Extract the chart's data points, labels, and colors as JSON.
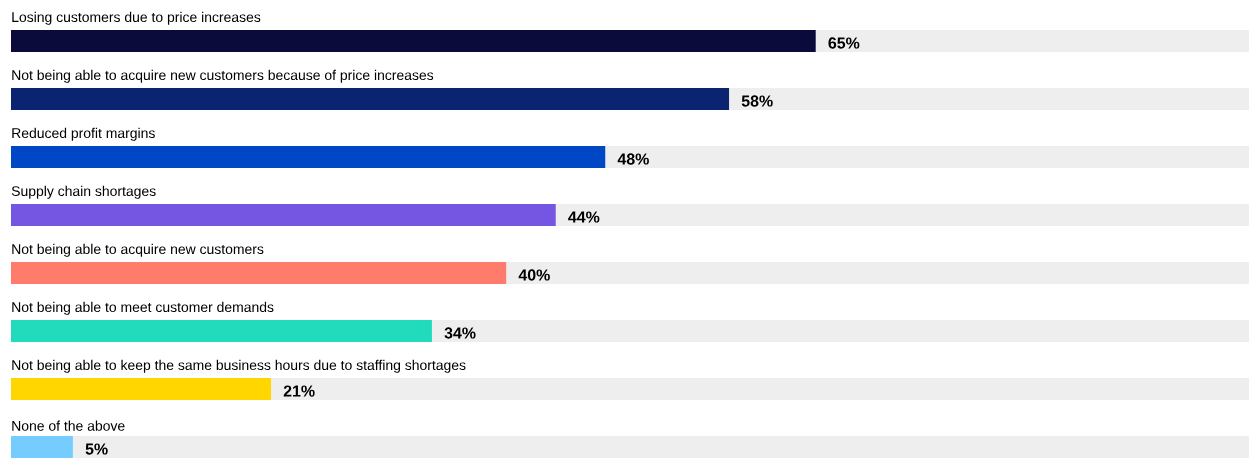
{
  "chart_data": {
    "type": "bar",
    "orientation": "horizontal",
    "categories": [
      "Losing customers due to price increases",
      "Not being able to acquire new customers because of price increases",
      "Reduced profit margins",
      "Supply chain shortages",
      "Not being able to acquire new customers",
      "Not being able to meet customer demands",
      "Not being able to keep the same business hours due to staffing shortages",
      "None of the above"
    ],
    "values": [
      65,
      58,
      48,
      44,
      40,
      34,
      21,
      5
    ],
    "value_labels": [
      "65%",
      "58%",
      "48%",
      "44%",
      "40%",
      "34%",
      "21%",
      "5%"
    ],
    "colors": [
      "#0b0b3b",
      "#0a2472",
      "#0047c6",
      "#7456e3",
      "#ff7b6b",
      "#22dbbd",
      "#ffd600",
      "#75cdff"
    ],
    "xlim": [
      0,
      100
    ],
    "tick_labels": false
  }
}
